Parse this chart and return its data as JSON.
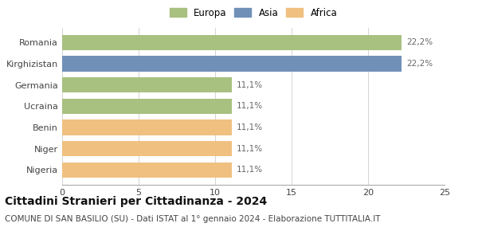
{
  "categories": [
    "Nigeria",
    "Niger",
    "Benin",
    "Ucraina",
    "Germania",
    "Kirghizistan",
    "Romania"
  ],
  "values": [
    11.1,
    11.1,
    11.1,
    11.1,
    11.1,
    22.2,
    22.2
  ],
  "bar_colors": [
    "#f0c080",
    "#f0c080",
    "#f0c080",
    "#a8c080",
    "#a8c080",
    "#7090b8",
    "#a8c080"
  ],
  "labels": [
    "11,1%",
    "11,1%",
    "11,1%",
    "11,1%",
    "11,1%",
    "22,2%",
    "22,2%"
  ],
  "xlim": [
    0,
    25
  ],
  "xticks": [
    0,
    5,
    10,
    15,
    20,
    25
  ],
  "legend": [
    {
      "label": "Europa",
      "color": "#a8c080"
    },
    {
      "label": "Asia",
      "color": "#7090b8"
    },
    {
      "label": "Africa",
      "color": "#f0c080"
    }
  ],
  "title": "Cittadini Stranieri per Cittadinanza - 2024",
  "subtitle": "COMUNE DI SAN BASILIO (SU) - Dati ISTAT al 1° gennaio 2024 - Elaborazione TUTTITALIA.IT",
  "title_fontsize": 10,
  "subtitle_fontsize": 7.5,
  "label_fontsize": 7.5,
  "tick_fontsize": 8,
  "legend_fontsize": 8.5,
  "background_color": "#ffffff",
  "bar_height": 0.72
}
